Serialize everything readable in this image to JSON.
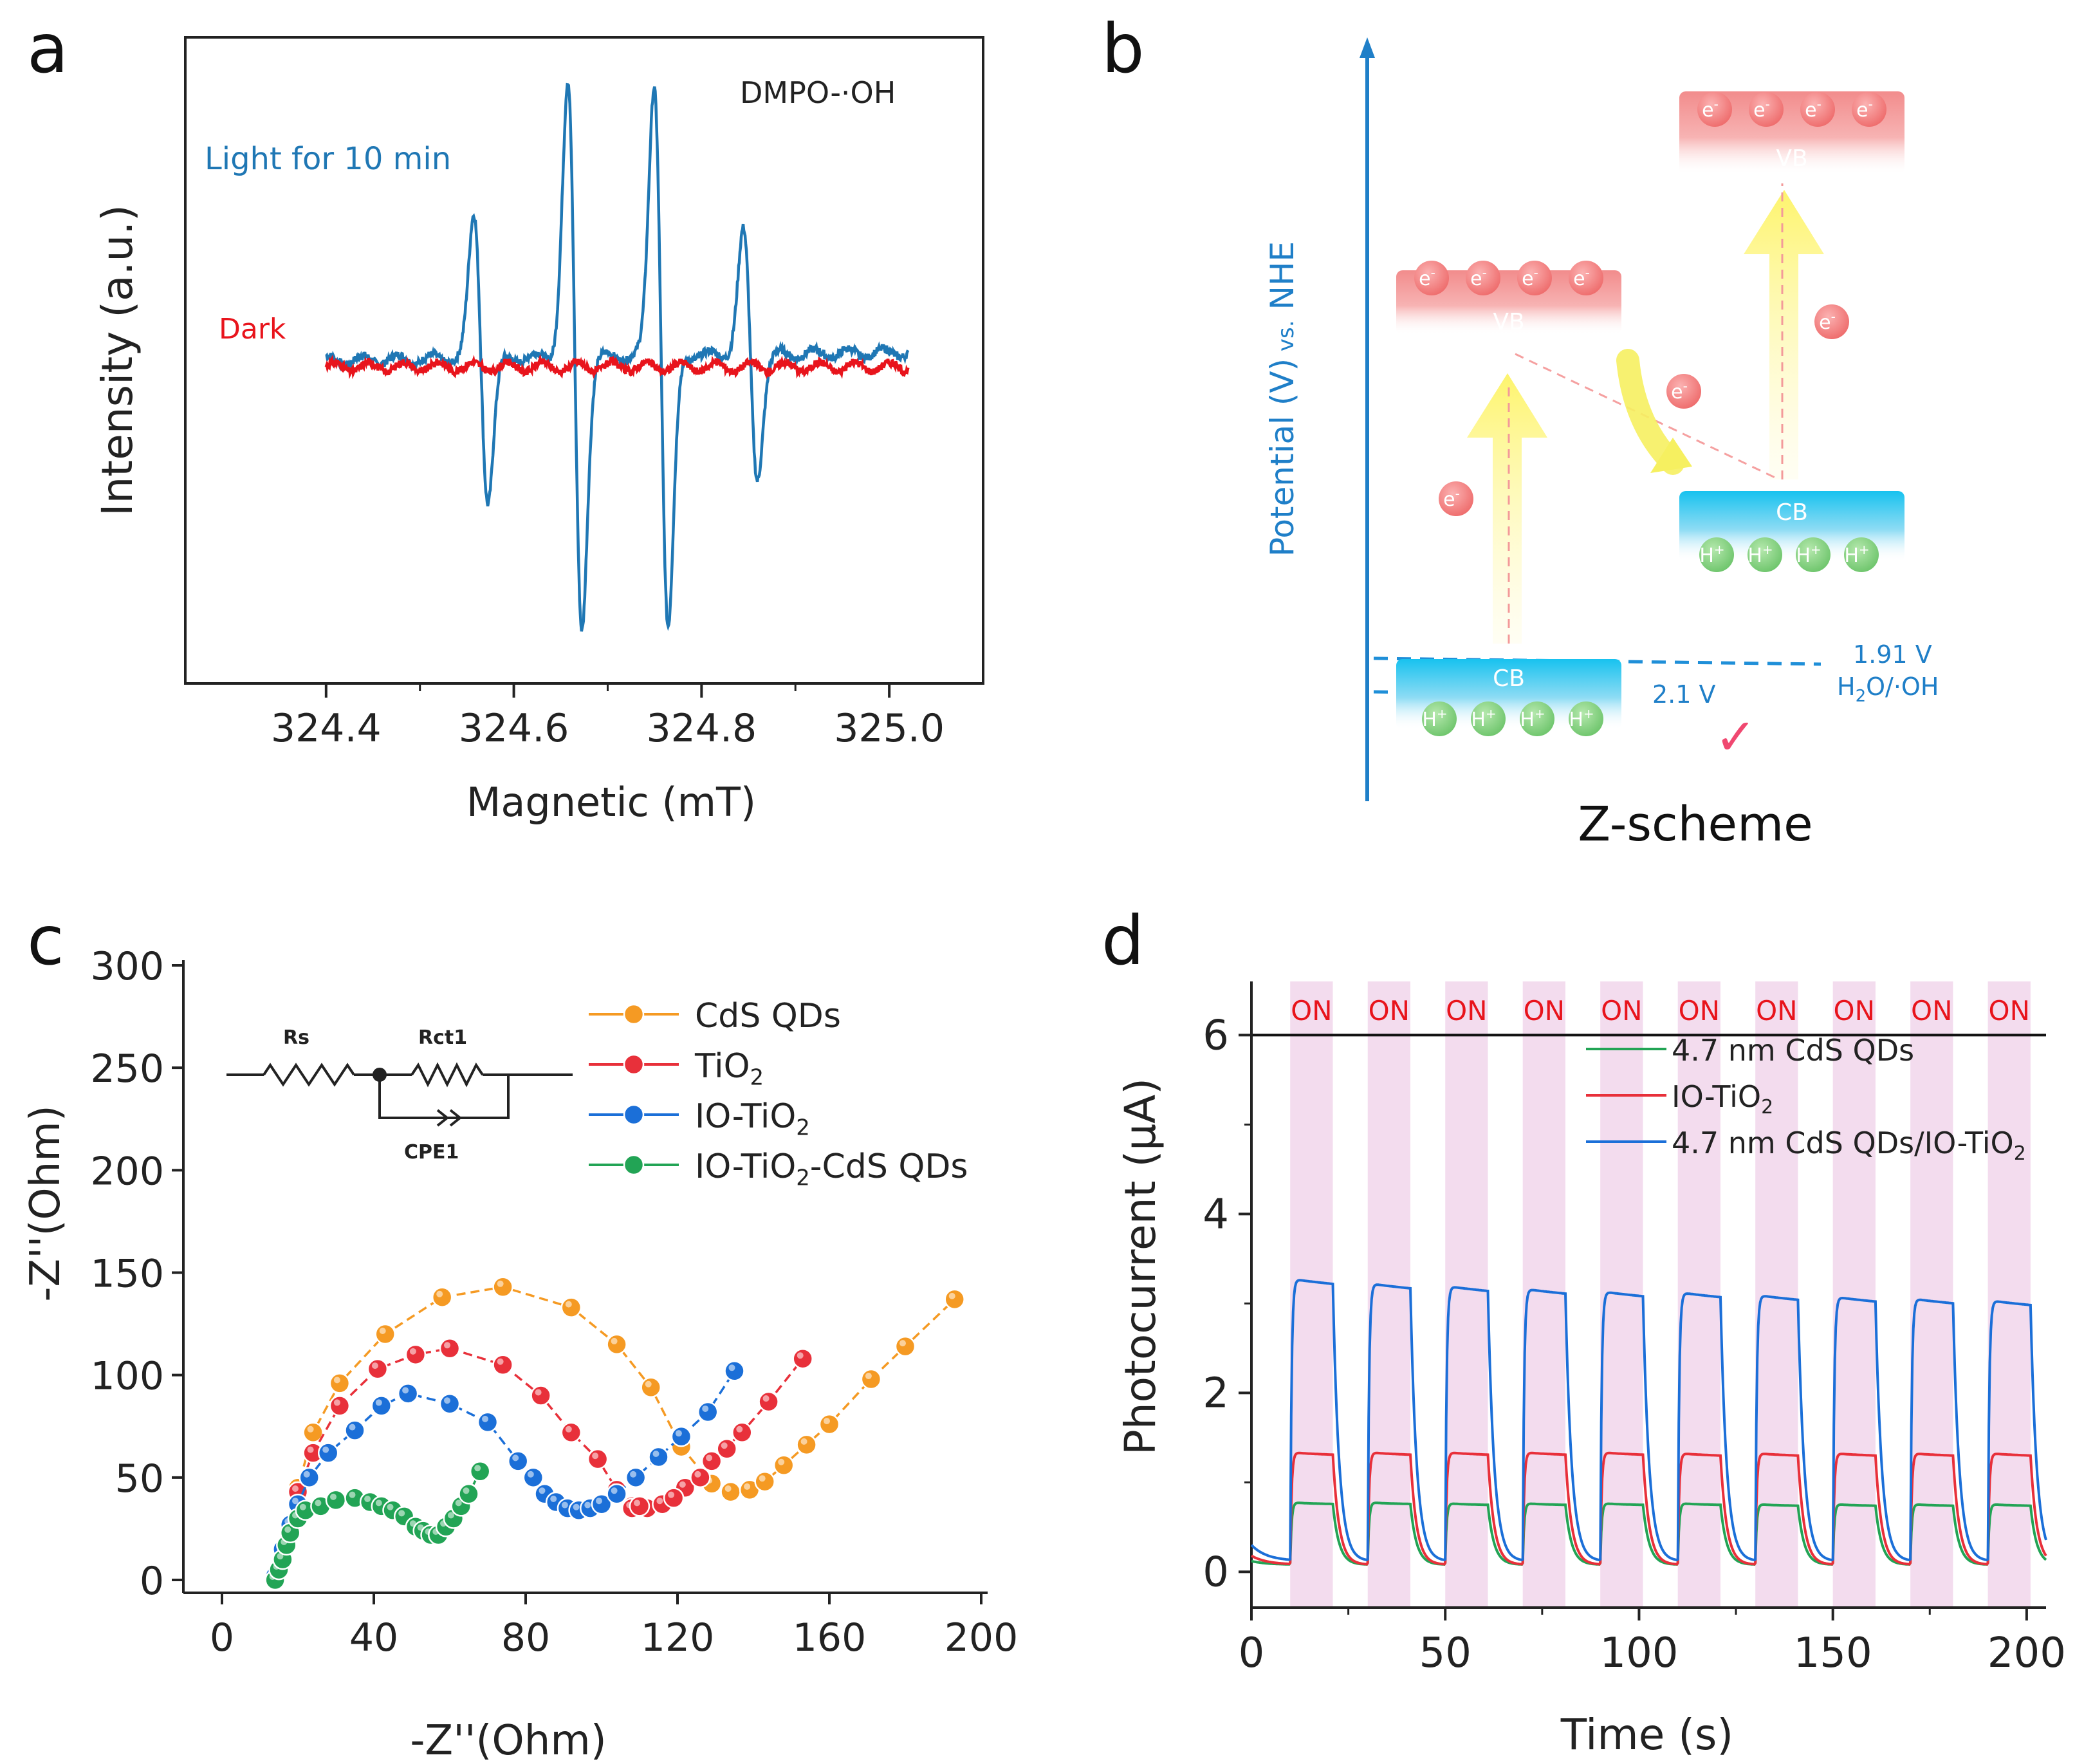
{
  "panels": {
    "a": {
      "letter": "a"
    },
    "b": {
      "letter": "b"
    },
    "c": {
      "letter": "c"
    },
    "d": {
      "letter": "d"
    }
  },
  "epr": {
    "annotation": "DMPO-·OH",
    "label_light": "Light for 10 min",
    "label_dark": "Dark"
  },
  "scheme": {
    "y_axis_label_main": "Potential (V)",
    "y_axis_label_vs": " vs.",
    "y_axis_label_ref": " NHE",
    "title": "Z-scheme",
    "vb_label": "VB",
    "cb_label": "CB",
    "electron": "e",
    "electron_sup": "-",
    "hole": "H",
    "hole_sup": "+",
    "level_191": "1.91 V",
    "couple_main": "H",
    "couple_sub": "2",
    "couple_rest": "O/·OH",
    "level_21": "2.1 V",
    "check": "✓"
  },
  "eis_inset": {
    "rs": "Rs",
    "rct1": "Rct1",
    "cpe1": "CPE1"
  },
  "colors": {
    "epr_light": "#1f77b4",
    "epr_dark": "#e8141c",
    "cds": "#f59a23",
    "tio2": "#e8303a",
    "io_tio2": "#1b6fd8",
    "io_tio2_cds": "#22a455",
    "scheme_blue": "#1f7fc8",
    "band_red": "#f08080",
    "band_cyan": "#1ec8f0",
    "hole_green": "#7dcf7a",
    "on_band": "#f3dcee"
  },
  "chart_data": [
    {
      "panel": "a",
      "type": "line",
      "title": "",
      "xlabel": "Magnetic (mT)",
      "ylabel": "Intensity (a.u.)",
      "xlim": [
        324.25,
        325.1
      ],
      "ylim": [
        0,
        1
      ],
      "xticks": [
        324.4,
        324.6,
        324.8,
        325.0
      ],
      "xtick_labels": [
        "324.4",
        "324.6",
        "324.8",
        "325.0"
      ],
      "y_ticks_shown": false,
      "series": [
        {
          "name": "Light for 10 min",
          "color_key": "epr_light",
          "baseline": 0.5,
          "peaks": [
            {
              "center": 324.565,
              "amplitude": 0.22
            },
            {
              "center": 324.665,
              "amplitude": 0.42
            },
            {
              "center": 324.757,
              "amplitude": 0.42
            },
            {
              "center": 324.852,
              "amplitude": 0.19
            }
          ]
        },
        {
          "name": "Dark",
          "color_key": "epr_dark",
          "baseline": 0.49,
          "peaks": []
        }
      ]
    },
    {
      "panel": "c",
      "type": "scatter",
      "xlabel": "-Z''(Ohm)",
      "ylabel": "-Z''(Ohm)",
      "xlim": [
        0,
        200
      ],
      "ylim": [
        0,
        300
      ],
      "xticks": [
        0,
        40,
        80,
        120,
        160,
        200
      ],
      "xtick_labels": [
        "0",
        "40",
        "80",
        "120",
        "160",
        "200"
      ],
      "yticks": [
        0,
        50,
        100,
        150,
        200,
        250,
        300
      ],
      "ytick_labels": [
        "0",
        "50",
        "100",
        "150",
        "200",
        "250",
        "300"
      ],
      "series": [
        {
          "name": "CdS QDs",
          "legend_main": "CdS QDs",
          "legend_sub": "",
          "legend_rest": "",
          "color_key": "cds",
          "x": [
            14,
            17,
            20,
            24,
            31,
            43,
            58,
            74,
            92,
            104,
            113,
            121,
            129,
            134,
            139,
            143,
            148,
            154,
            160,
            171,
            180,
            193
          ],
          "y": [
            2,
            18,
            45,
            72,
            96,
            120,
            138,
            143,
            133,
            115,
            94,
            65,
            47,
            43,
            44,
            48,
            56,
            66,
            76,
            98,
            114,
            137
          ]
        },
        {
          "name": "TiO2",
          "legend_main": "TiO",
          "legend_sub": "2",
          "legend_rest": "",
          "color_key": "tio2",
          "x": [
            14,
            17,
            20,
            24,
            31,
            41,
            51,
            60,
            74,
            84,
            92,
            99,
            104,
            108,
            112,
            116,
            122,
            129,
            137,
            144,
            153
          ],
          "y": [
            2,
            18,
            43,
            62,
            85,
            103,
            110,
            113,
            105,
            90,
            72,
            59,
            44,
            36,
            35,
            37,
            45,
            58,
            72,
            87,
            108
          ],
          "extra_x": [
            108,
            110,
            119,
            126,
            133
          ],
          "extra_y": [
            35,
            36,
            40,
            50,
            64
          ]
        },
        {
          "name": "IO-TiO2",
          "legend_main": "IO-TiO",
          "legend_sub": "2",
          "legend_rest": "",
          "color_key": "io_tio2",
          "x": [
            14,
            16,
            18,
            20,
            23,
            28,
            35,
            42,
            49,
            60,
            70,
            78,
            82,
            85,
            88,
            91,
            94,
            97,
            100,
            104,
            109,
            115,
            121,
            128,
            135
          ],
          "y": [
            2,
            15,
            27,
            37,
            50,
            62,
            73,
            85,
            91,
            86,
            77,
            58,
            50,
            42,
            38,
            35,
            34,
            35,
            37,
            42,
            50,
            60,
            70,
            82,
            102
          ]
        },
        {
          "name": "IO-TiO2-CdS QDs",
          "legend_main": "IO-TiO",
          "legend_sub": "2",
          "legend_rest": "-CdS QDs",
          "color_key": "io_tio2_cds",
          "x": [
            14,
            15,
            16,
            17,
            18,
            20,
            22,
            26,
            30,
            35,
            39,
            42,
            45,
            48,
            51,
            53,
            55,
            57,
            59,
            61,
            63,
            65,
            68
          ],
          "y": [
            0,
            5,
            10,
            17,
            23,
            30,
            34,
            36,
            39,
            40,
            38,
            36,
            34,
            31,
            26,
            24,
            22,
            22,
            26,
            30,
            36,
            42,
            53
          ]
        }
      ]
    },
    {
      "panel": "d",
      "type": "line",
      "xlabel": "Time (s)",
      "ylabel": "Photocurrent (μA)",
      "xlim": [
        0,
        205
      ],
      "ylim": [
        -0.4,
        6.6
      ],
      "xticks": [
        0,
        50,
        100,
        150,
        200
      ],
      "xtick_labels": [
        "0",
        "50",
        "100",
        "150",
        "200"
      ],
      "yticks": [
        0,
        2,
        4,
        6
      ],
      "ytick_labels": [
        "0",
        "2",
        "4",
        "6"
      ],
      "reference_line": 6,
      "on_label": "ON",
      "on_intervals": [
        [
          10,
          21
        ],
        [
          30,
          41
        ],
        [
          50,
          61
        ],
        [
          70,
          81
        ],
        [
          90,
          101
        ],
        [
          110,
          121
        ],
        [
          130,
          141
        ],
        [
          150,
          161
        ],
        [
          170,
          181
        ],
        [
          190,
          201
        ]
      ],
      "series": [
        {
          "name": "4.7 nm CdS QDs",
          "legend_main": "4.7 nm CdS QDs",
          "legend_sub": "",
          "legend_rest": "",
          "color_key": "io_tio2_cds",
          "on_plateau": [
            0.77,
            0.77,
            0.76,
            0.76,
            0.76,
            0.76,
            0.75,
            0.75,
            0.75,
            0.75
          ],
          "off_level": 0.08,
          "start": 0.12
        },
        {
          "name": "IO-TiO2",
          "legend_main": "IO-TiO",
          "legend_sub": "2",
          "legend_rest": "",
          "color_key": "tio2",
          "on_plateau": [
            1.33,
            1.33,
            1.33,
            1.33,
            1.33,
            1.32,
            1.32,
            1.32,
            1.32,
            1.32
          ],
          "off_level": 0.08,
          "start": 0.18
        },
        {
          "name": "4.7 nm CdS QDs/IO-TiO2",
          "legend_main": "4.7 nm CdS QDs/IO-TiO",
          "legend_sub": "2",
          "legend_rest": "",
          "color_key": "io_tio2",
          "on_plateau": [
            3.27,
            3.22,
            3.19,
            3.16,
            3.13,
            3.12,
            3.09,
            3.07,
            3.05,
            3.03
          ],
          "off_level": 0.12,
          "start": 0.3
        }
      ]
    }
  ]
}
